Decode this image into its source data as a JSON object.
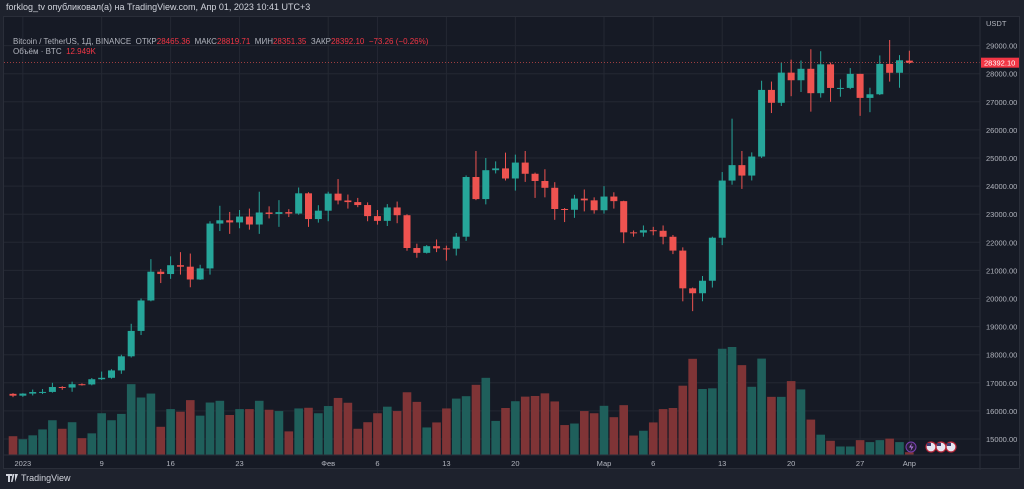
{
  "header": {
    "publisher_line": "forklog_tv опубликовал(а) на TradingView.com, Апр 01, 2023 10:41 UTC+3"
  },
  "legend": {
    "symbol": "Bitcoin / TetherUS, 1Д, BINANCE",
    "open_label": "ОТКР",
    "open": "28465.36",
    "high_label": "МАКС",
    "high": "28819.71",
    "low_label": "МИН",
    "low": "28351.35",
    "close_label": "ЗАКР",
    "close": "28392.10",
    "change": "−73.26 (−0.26%)",
    "volume_label": "Объём · BTC",
    "volume": "12.949K"
  },
  "price_axis": {
    "currency": "USDT",
    "ticks": [
      "29000.00",
      "28000.00",
      "27000.00",
      "26000.00",
      "25000.00",
      "24000.00",
      "23000.00",
      "22000.00",
      "21000.00",
      "20000.00",
      "19000.00",
      "18000.00",
      "17000.00",
      "16000.00",
      "15000.00"
    ],
    "last_price": "28392.10"
  },
  "time_axis": {
    "ticks": [
      {
        "label": "2023",
        "index": 1
      },
      {
        "label": "9",
        "index": 9
      },
      {
        "label": "16",
        "index": 16
      },
      {
        "label": "23",
        "index": 23
      },
      {
        "label": "Фев",
        "index": 32
      },
      {
        "label": "6",
        "index": 37
      },
      {
        "label": "13",
        "index": 44
      },
      {
        "label": "20",
        "index": 51
      },
      {
        "label": "Мар",
        "index": 60
      },
      {
        "label": "6",
        "index": 65
      },
      {
        "label": "13",
        "index": 72
      },
      {
        "label": "20",
        "index": 79
      },
      {
        "label": "27",
        "index": 86
      },
      {
        "label": "Апр",
        "index": 91
      }
    ]
  },
  "footer": {
    "brand": "TradingView"
  },
  "colors": {
    "up": "#26a69a",
    "down": "#ef5350",
    "vol_up": "#1f5f5b",
    "vol_down": "#7f3436",
    "background": "#161a25"
  },
  "icons": [
    "lightning-event-icon",
    "us-flag-event-icon"
  ],
  "chart_data": {
    "type": "candlestick",
    "first_date": "2022-12-31",
    "ylim": [
      14700,
      29500
    ],
    "ohlc": [
      [
        16607,
        16633,
        16490,
        16542
      ],
      [
        16542,
        16630,
        16500,
        16616
      ],
      [
        16616,
        16760,
        16550,
        16672
      ],
      [
        16672,
        16778,
        16600,
        16675
      ],
      [
        16675,
        17000,
        16650,
        16850
      ],
      [
        16850,
        16880,
        16750,
        16831
      ],
      [
        16831,
        17040,
        16680,
        16950
      ],
      [
        16950,
        16980,
        16900,
        16942
      ],
      [
        16942,
        17170,
        16910,
        17127
      ],
      [
        17127,
        17400,
        17100,
        17178
      ],
      [
        17178,
        17480,
        17150,
        17440
      ],
      [
        17440,
        18000,
        17320,
        17943
      ],
      [
        17943,
        19100,
        17900,
        18846
      ],
      [
        18846,
        20000,
        18700,
        19930
      ],
      [
        19930,
        21400,
        19900,
        20954
      ],
      [
        20954,
        21050,
        20550,
        20871
      ],
      [
        20871,
        21500,
        20700,
        21185
      ],
      [
        21185,
        21650,
        20850,
        21132
      ],
      [
        21132,
        21600,
        20400,
        20677
      ],
      [
        20677,
        21200,
        20660,
        21071
      ],
      [
        21071,
        22750,
        20850,
        22667
      ],
      [
        22667,
        23300,
        22400,
        22783
      ],
      [
        22783,
        23080,
        22300,
        22707
      ],
      [
        22707,
        23150,
        22500,
        22916
      ],
      [
        22916,
        23200,
        22450,
        22633
      ],
      [
        22633,
        23800,
        22300,
        23060
      ],
      [
        23060,
        23280,
        22850,
        23009
      ],
      [
        23009,
        23500,
        22550,
        23074
      ],
      [
        23074,
        23180,
        22900,
        23022
      ],
      [
        23022,
        23950,
        22980,
        23743
      ],
      [
        23743,
        23780,
        22550,
        22827
      ],
      [
        22827,
        23320,
        22700,
        23125
      ],
      [
        23125,
        23800,
        22750,
        23732
      ],
      [
        23732,
        24250,
        23350,
        23488
      ],
      [
        23488,
        23700,
        23200,
        23431
      ],
      [
        23431,
        23580,
        23250,
        23326
      ],
      [
        23326,
        23420,
        22750,
        22932
      ],
      [
        22932,
        23150,
        22630,
        22763
      ],
      [
        22763,
        23360,
        22580,
        23240
      ],
      [
        23240,
        23450,
        22680,
        22964
      ],
      [
        22964,
        23000,
        21700,
        21797
      ],
      [
        21797,
        21950,
        21450,
        21625
      ],
      [
        21625,
        21900,
        21600,
        21862
      ],
      [
        21862,
        22100,
        21650,
        21783
      ],
      [
        21783,
        21880,
        21350,
        21773
      ],
      [
        21773,
        22330,
        21530,
        22199
      ],
      [
        22199,
        24380,
        22050,
        24324
      ],
      [
        24324,
        25250,
        23500,
        23538
      ],
      [
        23538,
        25000,
        23350,
        24566
      ],
      [
        24566,
        24880,
        24450,
        24630
      ],
      [
        24630,
        25190,
        24200,
        24271
      ],
      [
        24271,
        25120,
        23840,
        24837
      ],
      [
        24837,
        25250,
        24150,
        24439
      ],
      [
        24439,
        24480,
        23580,
        24182
      ],
      [
        24182,
        24600,
        23600,
        23940
      ],
      [
        23940,
        24140,
        22800,
        23185
      ],
      [
        23185,
        23220,
        22720,
        23157
      ],
      [
        23157,
        23690,
        22870,
        23555
      ],
      [
        23555,
        23880,
        23100,
        23493
      ],
      [
        23493,
        23600,
        23020,
        23141
      ],
      [
        23141,
        24000,
        23020,
        23628
      ],
      [
        23628,
        23780,
        23200,
        23465
      ],
      [
        23465,
        23480,
        21970,
        22354
      ],
      [
        22354,
        22420,
        22200,
        22346
      ],
      [
        22346,
        22600,
        22200,
        22430
      ],
      [
        22430,
        22550,
        22250,
        22410
      ],
      [
        22410,
        22600,
        21930,
        22197
      ],
      [
        22197,
        22260,
        21580,
        21705
      ],
      [
        21705,
        21820,
        19900,
        20362
      ],
      [
        20362,
        20390,
        19550,
        20187
      ],
      [
        20187,
        20800,
        19900,
        20632
      ],
      [
        20632,
        22200,
        20390,
        22163
      ],
      [
        22163,
        24500,
        21900,
        24197
      ],
      [
        24197,
        26400,
        24050,
        24746
      ],
      [
        24746,
        25250,
        23900,
        24375
      ],
      [
        24375,
        25200,
        24200,
        25052
      ],
      [
        25052,
        27750,
        25000,
        27423
      ],
      [
        27423,
        27720,
        26600,
        26965
      ],
      [
        26965,
        28400,
        26850,
        28038
      ],
      [
        28038,
        28500,
        27200,
        27767
      ],
      [
        27767,
        28470,
        27350,
        28175
      ],
      [
        28175,
        28870,
        26650,
        27307
      ],
      [
        27307,
        28800,
        27150,
        28333
      ],
      [
        28333,
        28400,
        27000,
        27493
      ],
      [
        27493,
        27800,
        27180,
        27494
      ],
      [
        27494,
        28200,
        27450,
        27994
      ],
      [
        27994,
        27996,
        26500,
        27139
      ],
      [
        27139,
        27500,
        26630,
        27268
      ],
      [
        27268,
        28650,
        27240,
        28348
      ],
      [
        28348,
        29200,
        27720,
        28033
      ],
      [
        28033,
        28660,
        27500,
        28478
      ],
      [
        28465,
        28819,
        28351,
        28392
      ]
    ],
    "volume_k": [
      86,
      72,
      90,
      117,
      159,
      120,
      150,
      77,
      99,
      191,
      159,
      188,
      324,
      263,
      281,
      129,
      210,
      198,
      251,
      180,
      240,
      248,
      183,
      210,
      210,
      248,
      207,
      201,
      108,
      213,
      216,
      191,
      224,
      261,
      239,
      120,
      150,
      191,
      221,
      201,
      287,
      243,
      126,
      149,
      213,
      258,
      269,
      321,
      353,
      156,
      215,
      246,
      267,
      270,
      282,
      245,
      137,
      144,
      201,
      191,
      225,
      173,
      228,
      89,
      111,
      149,
      210,
      215,
      317,
      440,
      302,
      305,
      486,
      494,
      411,
      312,
      441,
      266,
      266,
      338,
      300,
      162,
      93,
      65,
      39,
      39,
      68,
      59,
      68,
      75,
      59,
      12.9
    ]
  }
}
